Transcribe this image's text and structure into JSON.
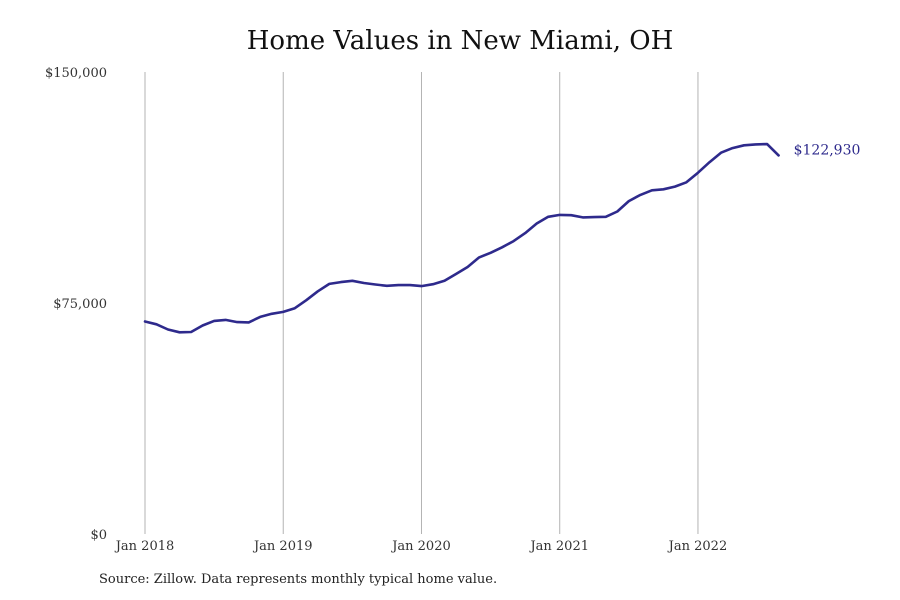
{
  "chart_data": {
    "type": "line",
    "title": "Home Values in New Miami, OH",
    "source": "Source: Zillow. Data represents monthly typical home value.",
    "xlabel": "",
    "ylabel": "",
    "x_ticks": [
      "Jan 2018",
      "Jan 2019",
      "Jan 2020",
      "Jan 2021",
      "Jan 2022"
    ],
    "y_ticks": [
      "$0",
      "$75,000",
      "$150,000"
    ],
    "y_tick_values": [
      0,
      75000,
      150000
    ],
    "ylim": [
      0,
      150000
    ],
    "grid": "vertical lines at January of each year",
    "line_color": "#2e2a8c",
    "end_label": "$122,930",
    "x": [
      "2018-01",
      "2018-02",
      "2018-03",
      "2018-04",
      "2018-05",
      "2018-06",
      "2018-07",
      "2018-08",
      "2018-09",
      "2018-10",
      "2018-11",
      "2018-12",
      "2019-01",
      "2019-02",
      "2019-03",
      "2019-04",
      "2019-05",
      "2019-06",
      "2019-07",
      "2019-08",
      "2019-09",
      "2019-10",
      "2019-11",
      "2019-12",
      "2020-01",
      "2020-02",
      "2020-03",
      "2020-04",
      "2020-05",
      "2020-06",
      "2020-07",
      "2020-08",
      "2020-09",
      "2020-10",
      "2020-11",
      "2020-12",
      "2021-01",
      "2021-02",
      "2021-03",
      "2021-04",
      "2021-05",
      "2021-06",
      "2021-07",
      "2021-08",
      "2021-09",
      "2021-10",
      "2021-11",
      "2021-12",
      "2022-01",
      "2022-02",
      "2022-03",
      "2022-04",
      "2022-05",
      "2022-06",
      "2022-07",
      "2022-08"
    ],
    "series": [
      {
        "values": [
          69000,
          68100,
          66400,
          65500,
          65600,
          67700,
          69200,
          69500,
          68800,
          68700,
          70500,
          71500,
          72100,
          73300,
          75900,
          78800,
          81200,
          81800,
          82200,
          81500,
          81000,
          80600,
          80800,
          80800,
          80500,
          81100,
          82200,
          84400,
          86700,
          89800,
          91300,
          93100,
          95100,
          97700,
          100800,
          103000,
          103600,
          103500,
          102800,
          102900,
          103000,
          104700,
          108100,
          110100,
          111600,
          111900,
          112800,
          114200,
          117300,
          120700,
          123800,
          125300,
          126200,
          126500,
          126600,
          122930
        ]
      }
    ]
  }
}
